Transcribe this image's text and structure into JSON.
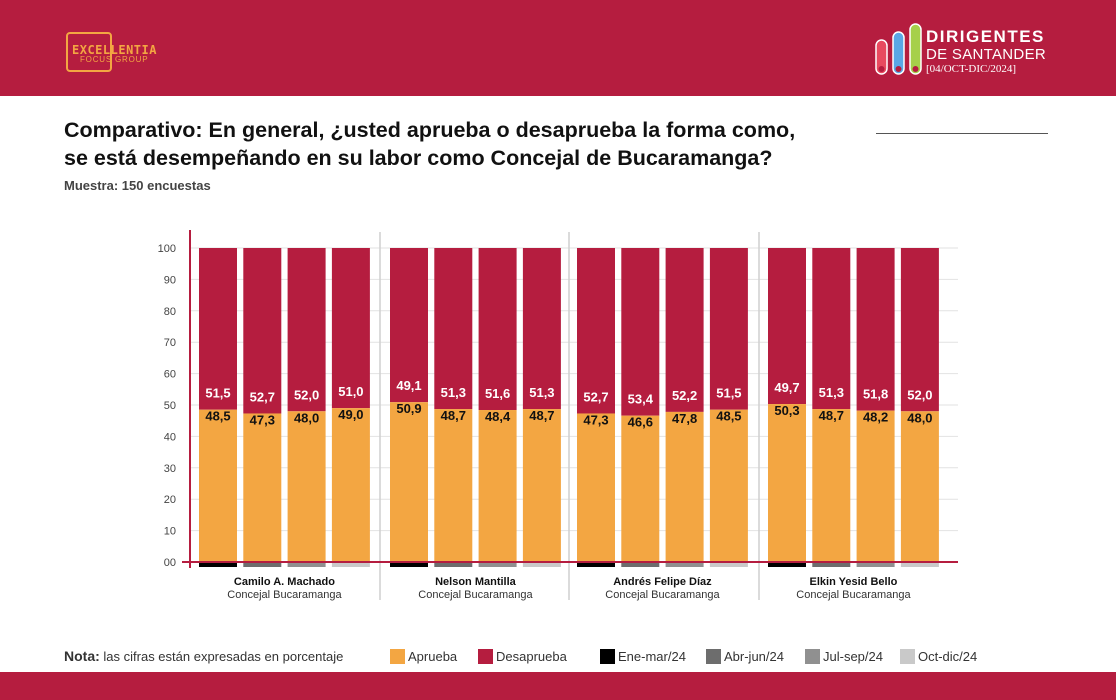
{
  "header": {
    "left_logo": {
      "line1": "EXCELLENTIA",
      "line2": "FOCUS GROUP"
    },
    "right_logo": {
      "line1": "DIRIGENTES",
      "line2": "DE SANTANDER",
      "line3": "[04/OCT-DIC/2024]"
    }
  },
  "title": "Comparativo: En general, ¿usted aprueba o desaprueba la forma como, se está desempeñando en su labor como Concejal de Bucaramanga?",
  "title_line1": "Comparativo: En general, ¿usted aprueba o desaprueba la forma como,",
  "title_line2": "se está desempeñando en su labor como Concejal de Bucaramanga?",
  "sample": "Muestra: 150 encuestas",
  "note": {
    "label": "Nota:",
    "text": "las cifras están expresadas en porcentaje"
  },
  "legend": [
    {
      "label": "Aprueba",
      "color": "#f3a642"
    },
    {
      "label": "Desaprueba",
      "color": "#b51d3f"
    },
    {
      "label": "Ene-mar/24",
      "color": "#000000"
    },
    {
      "label": "Abr-jun/24",
      "color": "#6d6d6d"
    },
    {
      "label": "Jul-sep/24",
      "color": "#909090"
    },
    {
      "label": "Oct-dic/24",
      "color": "#c9c9c9"
    }
  ],
  "chart_data": {
    "type": "bar",
    "stacked": true,
    "ylim": [
      0,
      100
    ],
    "yticks": [
      "00",
      "10",
      "20",
      "30",
      "40",
      "50",
      "60",
      "70",
      "80",
      "90",
      "100"
    ],
    "grid": true,
    "periods": [
      "Ene-mar/24",
      "Abr-jun/24",
      "Jul-sep/24",
      "Oct-dic/24"
    ],
    "period_colors": [
      "#000000",
      "#6d6d6d",
      "#909090",
      "#c9c9c9"
    ],
    "series_colors": {
      "Aprueba": "#f3a642",
      "Desaprueba": "#b51d3f"
    },
    "groups": [
      {
        "name": "Camilo A. Machado",
        "subtitle": "Concejal Bucaramanga",
        "aprueba": [
          "48,5",
          "47,3",
          "48,0",
          "49,0"
        ],
        "desaprueba": [
          "51,5",
          "52,7",
          "52,0",
          "51,0"
        ]
      },
      {
        "name": "Nelson Mantilla",
        "subtitle": "Concejal Bucaramanga",
        "aprueba": [
          "50,9",
          "48,7",
          "48,4",
          "48,7"
        ],
        "desaprueba": [
          "49,1",
          "51,3",
          "51,6",
          "51,3"
        ]
      },
      {
        "name": "Andrés Felipe Díaz",
        "subtitle": "Concejal Bucaramanga",
        "aprueba": [
          "47,3",
          "46,6",
          "47,8",
          "48,5"
        ],
        "desaprueba": [
          "52,7",
          "53,4",
          "52,2",
          "51,5"
        ]
      },
      {
        "name": "Elkin Yesid Bello",
        "subtitle": "Concejal Bucaramanga",
        "aprueba": [
          "50,3",
          "48,7",
          "48,2",
          "48,0"
        ],
        "desaprueba": [
          "49,7",
          "51,3",
          "51,8",
          "52,0"
        ]
      }
    ]
  }
}
